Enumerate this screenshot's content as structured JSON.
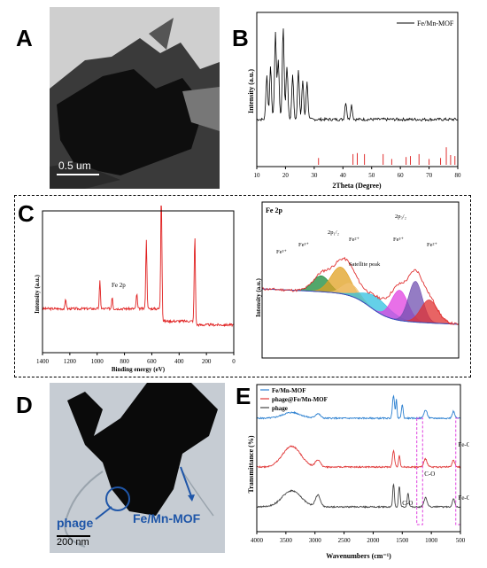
{
  "panels": {
    "A": {
      "letter": "A",
      "scale_bar": "0.5 um"
    },
    "B": {
      "letter": "B"
    },
    "C": {
      "letter": "C"
    },
    "D": {
      "letter": "D",
      "scale_bar": "200 nm",
      "labels": [
        "phage",
        "Fe/Mn-MOF"
      ]
    },
    "E": {
      "letter": "E"
    }
  },
  "chart_data": [
    {
      "type": "line",
      "panel": "B",
      "xlabel": "2Theta (Degree)",
      "ylabel": "Intensity (a.u.)",
      "xlim": [
        10,
        80
      ],
      "xticks": [
        "10",
        "20",
        "30",
        "40",
        "50",
        "60",
        "70",
        "80"
      ],
      "series": [
        {
          "name": "Fe/Mn-MOF",
          "color": "#000000",
          "peaks": [
            [
              13.5,
              0.45
            ],
            [
              14.8,
              0.55
            ],
            [
              16.5,
              0.88
            ],
            [
              17.5,
              0.6
            ],
            [
              19.2,
              0.95
            ],
            [
              20.5,
              0.55
            ],
            [
              22.5,
              0.45
            ],
            [
              24.5,
              0.5
            ],
            [
              26.0,
              0.4
            ],
            [
              27.5,
              0.38
            ],
            [
              41.0,
              0.18
            ],
            [
              43.0,
              0.15
            ]
          ]
        }
      ],
      "reference_lines_color": "#e03030",
      "reference_lines": [
        [
          31.5,
          0.35
        ],
        [
          43.5,
          0.55
        ],
        [
          45.0,
          0.6
        ],
        [
          47.5,
          0.55
        ],
        [
          54.0,
          0.55
        ],
        [
          57.0,
          0.3
        ],
        [
          62.0,
          0.4
        ],
        [
          63.5,
          0.45
        ],
        [
          66.5,
          0.55
        ],
        [
          70.0,
          0.3
        ],
        [
          74.0,
          0.35
        ],
        [
          76.0,
          0.9
        ],
        [
          77.5,
          0.5
        ],
        [
          79.0,
          0.45
        ]
      ]
    },
    {
      "type": "line",
      "panel": "C-survey",
      "xlabel": "Binding energy (eV)",
      "ylabel": "Intensity (a.u.)",
      "xlim": [
        1400,
        0
      ],
      "xticks": [
        "1400",
        "1200",
        "1000",
        "800",
        "600",
        "400",
        "200",
        "0"
      ],
      "annotations": [
        "Fe 2p"
      ],
      "series": [
        {
          "name": "",
          "color": "#e02020"
        }
      ]
    },
    {
      "type": "area",
      "panel": "C-Fe2p",
      "ylabel": "Intensity (a.u.)",
      "title": "Fe 2p",
      "annotations": [
        "Fe³⁺",
        "Fe³⁺",
        "2p₁/₂",
        "Fe²⁺",
        "Satellite peak",
        "Fe³⁺",
        "2p₃/₂",
        "Fe²⁺"
      ],
      "component_colors": [
        "#1a8a3a",
        "#e0a020",
        "#f0c070",
        "#30c0e0",
        "#e040e0",
        "#7050b0",
        "#e03030"
      ]
    },
    {
      "type": "line",
      "panel": "E",
      "xlabel": "Wavenumbers (cm⁻¹)",
      "ylabel": "Transmittance (%)",
      "xlim": [
        4000,
        500
      ],
      "xticks": [
        "4000",
        "3500",
        "3000",
        "2500",
        "2000",
        "1500",
        "1000",
        "500"
      ],
      "annotations": [
        "C-O",
        "Fe-C",
        "C-O",
        "Fe-C"
      ],
      "series": [
        {
          "name": "Fe/Mn-MOF",
          "color": "#2a7fd0"
        },
        {
          "name": "phage@Fe/Mn-MOF",
          "color": "#e03838"
        },
        {
          "name": "phage",
          "color": "#444444"
        }
      ]
    }
  ]
}
